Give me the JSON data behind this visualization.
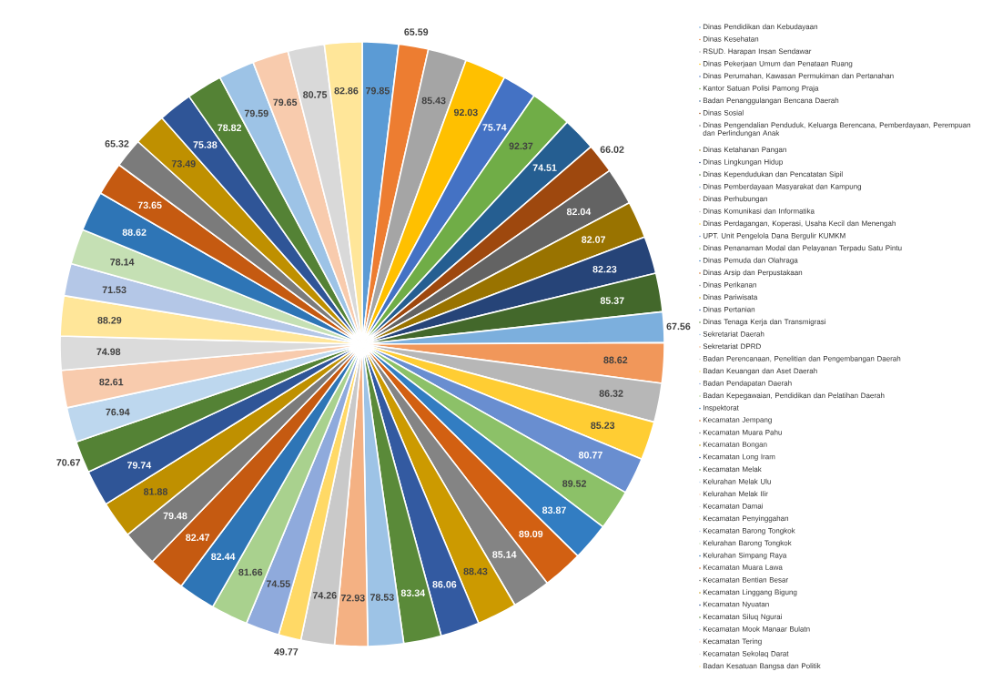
{
  "chart_data": {
    "type": "pie",
    "categories": [
      "Dinas Pendidikan dan Kebudayaan",
      "Dinas Kesehatan",
      "RSUD. Harapan Insan Sendawar",
      "Dinas Pekerjaan Umum dan Penataan Ruang",
      "Dinas Perumahan, Kawasan Permukiman dan Pertanahan",
      "Kantor Satuan Polisi Pamong Praja",
      "Badan Penanggulangan Bencana Daerah",
      "Dinas Sosial",
      "Dinas Pengendalian Penduduk, Keluarga Berencana, Pemberdayaan, Perempuan dan Perlindungan Anak",
      "Dinas Ketahanan Pangan",
      "Dinas Lingkungan Hidup",
      "Dinas Kependudukan dan Pencatatan Sipil",
      "Dinas Pemberdayaan Masyarakat dan Kampung",
      "Dinas Perhubungan",
      "Dinas Komunikasi dan Informatika",
      "Dinas Perdagangan, Koperasi, Usaha Kecil dan Menengah",
      "UPT. Unit Pengelola Dana Bergulir KUMKM",
      "Dinas Penanaman Modal dan Pelayanan Terpadu Satu Pintu",
      "Dinas Pemuda dan Olahraga",
      "Dinas Arsip dan Perpustakaan",
      "Dinas Perikanan",
      "Dinas Pariwisata",
      "Dinas Pertanian",
      "Dinas Tenaga Kerja dan Transmigrasi",
      "Sekretariat Daerah",
      "Sekretariat DPRD",
      "Badan Perencanaan, Penelitian dan Pengembangan Daerah",
      "Badan Keuangan dan Aset Daerah",
      "Badan Pendapatan Daerah",
      "Badan Kepegawaian, Pendidikan dan Pelatihan Daerah",
      "Inspektorat",
      "Kecamatan Jempang",
      "Kecamatan Muara Pahu",
      "Kecamatan Bongan",
      "Kecamatan Long Iram",
      "Kecamatan Melak",
      "Kelurahan Melak Ulu",
      "Kelurahan Melak Ilir",
      "Kecamatan Damai",
      "Kecamatan Penyinggahan",
      "Kecamatan Barong Tongkok",
      "Kelurahan Barong Tongkok",
      "Kelurahan Simpang Raya",
      "Kecamatan Muara Lawa",
      "Kecamatan Bentian Besar",
      "Kecamatan Linggang Bigung",
      "Kecamatan Nyuatan",
      "Kecamatan Siluq Ngurai",
      "Kecamatan Mook Manaar Bulatn",
      "Kecamatan Tering",
      "Kecamatan Sekolaq Darat",
      "Badan Kesatuan Bangsa dan Politik"
    ],
    "values": [
      79.85,
      65.59,
      85.43,
      92.03,
      75.74,
      92.37,
      74.51,
      66.02,
      82.04,
      82.07,
      82.23,
      85.37,
      67.56,
      88.62,
      86.32,
      85.23,
      80.77,
      89.52,
      83.87,
      89.09,
      85.14,
      88.43,
      86.06,
      83.34,
      78.53,
      72.93,
      74.26,
      49.77,
      74.55,
      81.66,
      82.44,
      82.47,
      79.48,
      81.88,
      79.74,
      70.67,
      76.94,
      82.61,
      74.98,
      88.29,
      71.53,
      78.14,
      88.62,
      73.65,
      65.32,
      73.49,
      75.38,
      78.82,
      79.59,
      79.65,
      80.75,
      82.86
    ],
    "colors": [
      "#5b9bd5",
      "#ed7d31",
      "#a5a5a5",
      "#ffc000",
      "#4472c4",
      "#70ad47",
      "#255e91",
      "#9e480e",
      "#636363",
      "#997300",
      "#264478",
      "#43682b",
      "#7cafdd",
      "#f1975a",
      "#b7b7b7",
      "#ffcd33",
      "#698ed0",
      "#8cc168",
      "#327dc2",
      "#d26012",
      "#848484",
      "#cc9a00",
      "#335aa1",
      "#5a8a39",
      "#9dc3e6",
      "#f4b183",
      "#c9c9c9",
      "#ffd966",
      "#8faadc",
      "#a9d18e",
      "#2e75b6",
      "#c55a11",
      "#7b7b7b",
      "#bf9000",
      "#2f5597",
      "#548235",
      "#bdd7ee",
      "#f8cbad",
      "#dbdbdb",
      "#ffe699",
      "#b4c7e7",
      "#c5e0b4",
      "#2e75b6",
      "#c55a11",
      "#7b7b7b",
      "#bf9000",
      "#2f5597",
      "#548235",
      "#9dc3e6",
      "#f8cbad",
      "#d9d9d9",
      "#ffe699"
    ],
    "data_labels": true,
    "legend": "right"
  }
}
